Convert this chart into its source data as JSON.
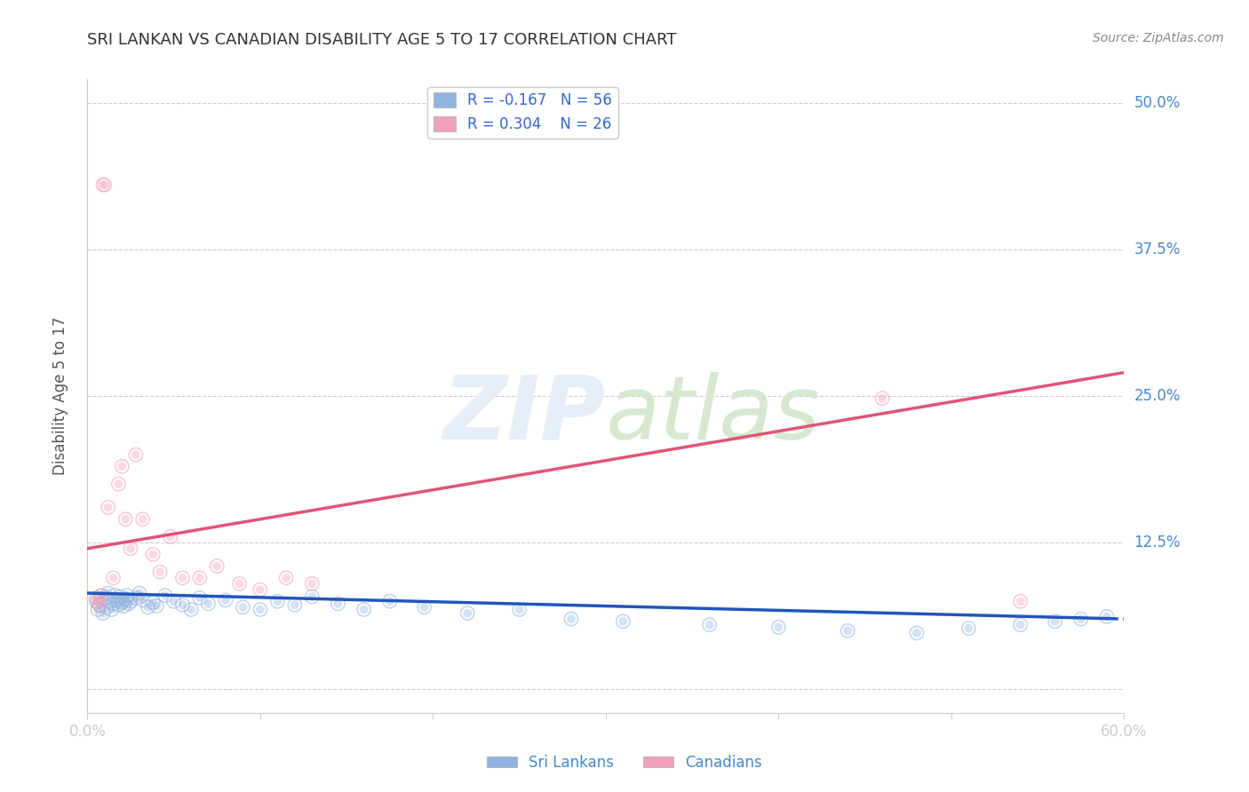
{
  "title": "SRI LANKAN VS CANADIAN DISABILITY AGE 5 TO 17 CORRELATION CHART",
  "source": "Source: ZipAtlas.com",
  "ylabel": "Disability Age 5 to 17",
  "xlim": [
    0.0,
    0.6
  ],
  "ylim": [
    -0.02,
    0.52
  ],
  "yticks": [
    0.0,
    0.125,
    0.25,
    0.375,
    0.5
  ],
  "ytick_labels": [
    "",
    "12.5%",
    "25.0%",
    "37.5%",
    "50.0%"
  ],
  "blue_R": -0.167,
  "blue_N": 56,
  "pink_R": 0.304,
  "pink_N": 26,
  "blue_scatter_color": "#92B4E0",
  "pink_scatter_color": "#F0A0B8",
  "blue_line_color": "#2255BB",
  "pink_line_color": "#E05575",
  "grid_color": "#CCCCCC",
  "title_color": "#333333",
  "axis_label_color": "#4488CC",
  "watermark_color": "#E8EEF8",
  "legend_label_color": "#3366CC",
  "sri_lankans_x": [
    0.005,
    0.006,
    0.007,
    0.008,
    0.009,
    0.01,
    0.011,
    0.012,
    0.013,
    0.014,
    0.015,
    0.016,
    0.017,
    0.018,
    0.019,
    0.02,
    0.021,
    0.022,
    0.023,
    0.024,
    0.025,
    0.028,
    0.03,
    0.032,
    0.035,
    0.038,
    0.04,
    0.045,
    0.05,
    0.055,
    0.06,
    0.065,
    0.07,
    0.08,
    0.09,
    0.1,
    0.11,
    0.12,
    0.13,
    0.145,
    0.16,
    0.175,
    0.195,
    0.22,
    0.25,
    0.28,
    0.31,
    0.36,
    0.4,
    0.44,
    0.48,
    0.51,
    0.54,
    0.56,
    0.575,
    0.59
  ],
  "sri_lankans_y": [
    0.075,
    0.068,
    0.072,
    0.08,
    0.065,
    0.078,
    0.07,
    0.082,
    0.075,
    0.068,
    0.073,
    0.08,
    0.076,
    0.072,
    0.079,
    0.074,
    0.071,
    0.077,
    0.08,
    0.073,
    0.075,
    0.078,
    0.082,
    0.076,
    0.07,
    0.074,
    0.071,
    0.08,
    0.075,
    0.072,
    0.068,
    0.078,
    0.073,
    0.076,
    0.07,
    0.068,
    0.075,
    0.072,
    0.079,
    0.073,
    0.068,
    0.075,
    0.07,
    0.065,
    0.068,
    0.06,
    0.058,
    0.055,
    0.053,
    0.05,
    0.048,
    0.052,
    0.055,
    0.058,
    0.06,
    0.062
  ],
  "canadians_x": [
    0.005,
    0.006,
    0.007,
    0.008,
    0.009,
    0.01,
    0.012,
    0.015,
    0.018,
    0.02,
    0.022,
    0.025,
    0.028,
    0.032,
    0.038,
    0.042,
    0.048,
    0.055,
    0.065,
    0.075,
    0.088,
    0.1,
    0.115,
    0.13,
    0.46,
    0.54
  ],
  "canadians_y": [
    0.078,
    0.075,
    0.072,
    0.08,
    0.43,
    0.43,
    0.155,
    0.095,
    0.175,
    0.19,
    0.145,
    0.12,
    0.2,
    0.145,
    0.115,
    0.1,
    0.13,
    0.095,
    0.095,
    0.105,
    0.09,
    0.085,
    0.095,
    0.09,
    0.248,
    0.075
  ],
  "blue_line_x0": 0.0,
  "blue_line_y0": 0.082,
  "blue_line_x1": 0.6,
  "blue_line_y1": 0.06,
  "blue_line_solid_end": 0.59,
  "pink_line_x0": 0.0,
  "pink_line_y0": 0.12,
  "pink_line_x1": 0.6,
  "pink_line_y1": 0.27
}
